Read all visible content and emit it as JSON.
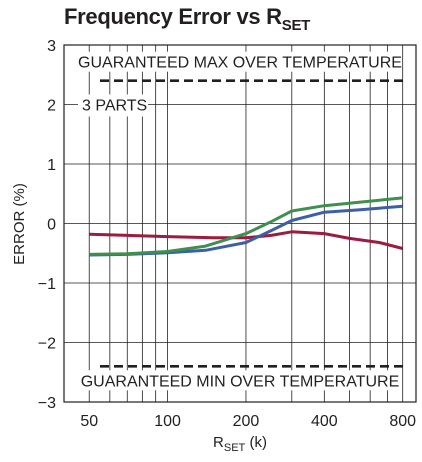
{
  "chart_data": {
    "type": "line",
    "title": "Frequency Error vs R",
    "title_sub": "SET",
    "xlabel": "R",
    "xlabel_sub": "SET",
    "xlabel_unit": " (k)",
    "ylabel": "ERROR (%)",
    "x_scale": "log",
    "xlim": [
      40,
      900
    ],
    "ylim": [
      -3,
      3
    ],
    "x_ticks": [
      50,
      100,
      200,
      400,
      800
    ],
    "y_ticks": [
      3,
      2,
      1,
      0,
      -1,
      -2,
      -3
    ],
    "y_tick_labels": [
      "3",
      "2",
      "1",
      "0",
      "−1",
      "−2",
      "−3"
    ],
    "grid": true,
    "limits": [
      {
        "label": "GUARANTEED MAX OVER TEMPERATURE",
        "value": 2.4
      },
      {
        "label": "GUARANTEED MIN OVER TEMPERATURE",
        "value": -2.4
      }
    ],
    "annotation": "3 PARTS",
    "series": [
      {
        "color": "#9b1b41",
        "x": [
          50,
          100,
          150,
          200,
          250,
          300,
          400,
          500,
          650,
          800
        ],
        "y": [
          -0.18,
          -0.22,
          -0.24,
          -0.24,
          -0.2,
          -0.14,
          -0.17,
          -0.25,
          -0.32,
          -0.42
        ]
      },
      {
        "color": "#3c5fa6",
        "x": [
          50,
          70,
          100,
          140,
          200,
          250,
          300,
          400,
          550,
          800
        ],
        "y": [
          -0.53,
          -0.52,
          -0.49,
          -0.45,
          -0.32,
          -0.12,
          0.05,
          0.19,
          0.23,
          0.29
        ]
      },
      {
        "color": "#3f8f4f",
        "x": [
          50,
          70,
          100,
          140,
          200,
          250,
          300,
          400,
          550,
          800
        ],
        "y": [
          -0.52,
          -0.51,
          -0.47,
          -0.38,
          -0.17,
          0.03,
          0.21,
          0.3,
          0.36,
          0.43
        ]
      }
    ]
  }
}
